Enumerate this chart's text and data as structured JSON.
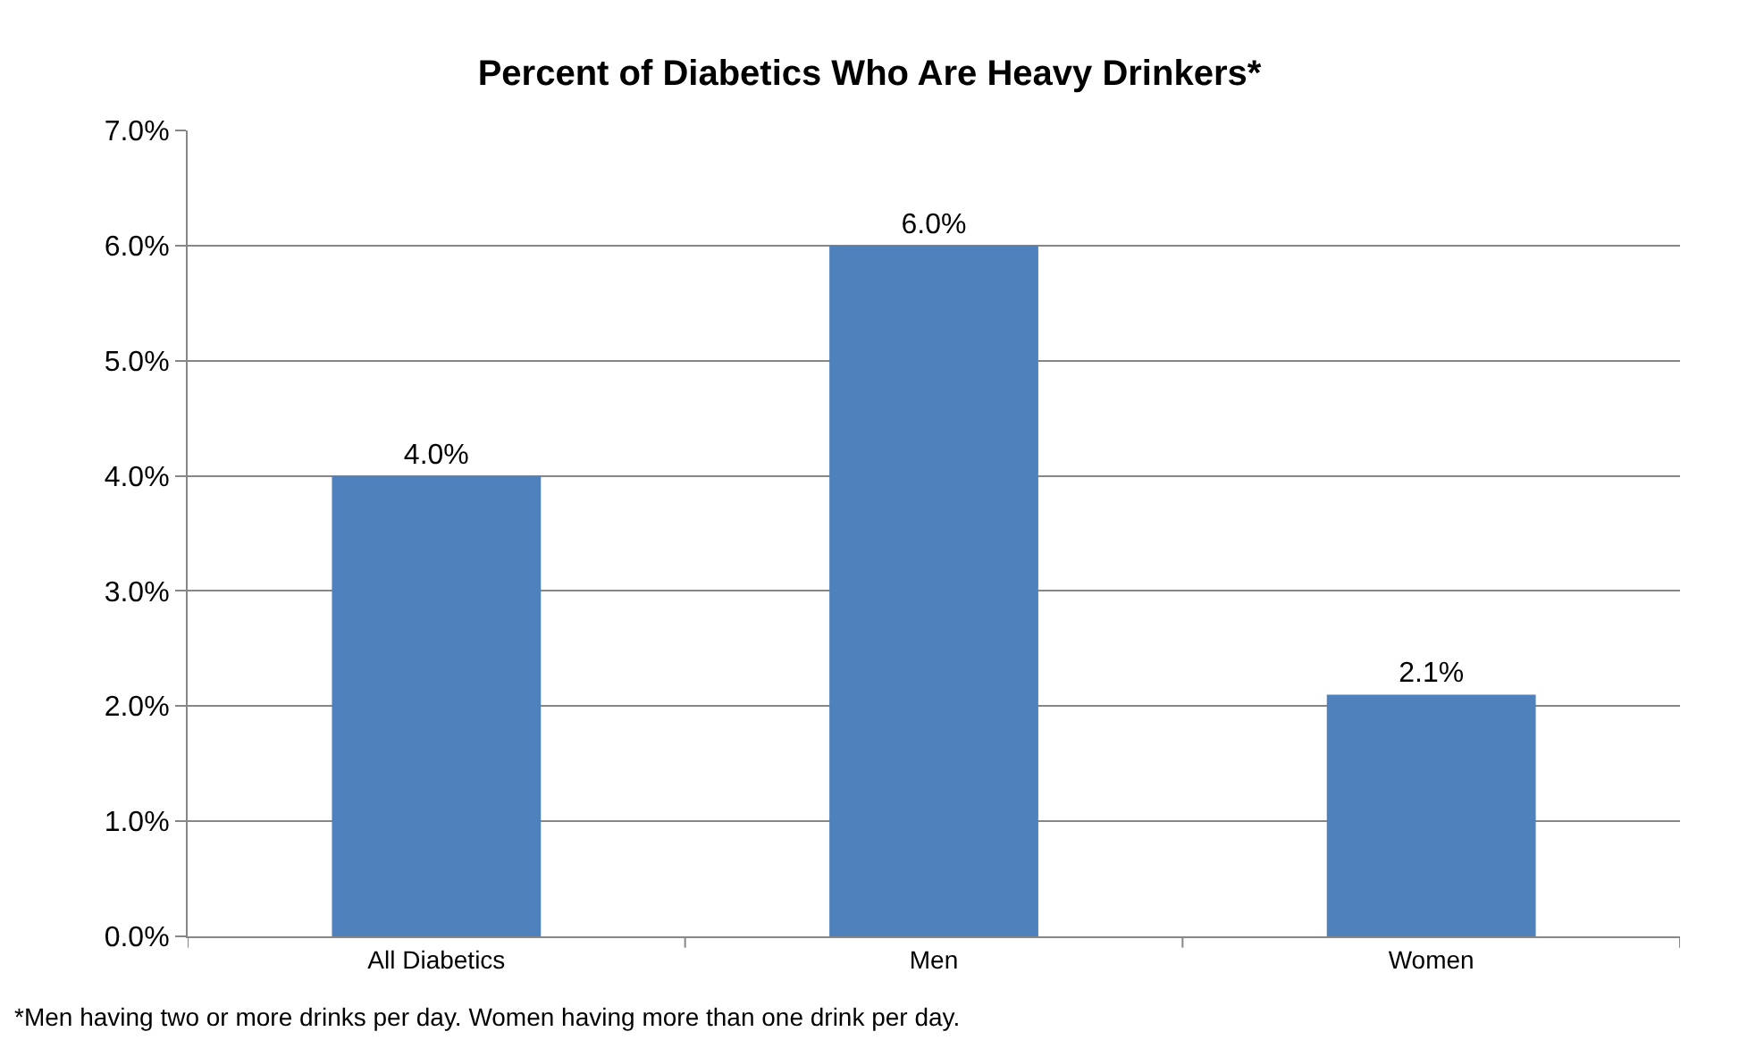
{
  "chart_data": {
    "type": "bar",
    "title": "Percent of Diabetics Who Are Heavy Drinkers*",
    "categories": [
      "All Diabetics",
      "Men",
      "Women"
    ],
    "values": [
      4.0,
      6.0,
      2.1
    ],
    "value_labels": [
      "4.0%",
      "6.0%",
      "2.1%"
    ],
    "color": "#4f81bd",
    "ylim": [
      0,
      7
    ],
    "yticks": [
      {
        "value": 0,
        "label": "0.0%"
      },
      {
        "value": 1,
        "label": "1.0%"
      },
      {
        "value": 2,
        "label": "2.0%"
      },
      {
        "value": 3,
        "label": "3.0%"
      },
      {
        "value": 4,
        "label": "4.0%"
      },
      {
        "value": 5,
        "label": "5.0%"
      },
      {
        "value": 6,
        "label": "6.0%"
      },
      {
        "value": 7,
        "label": "7.0%"
      }
    ],
    "grid": "y",
    "legend": false,
    "annotations": [
      "*Men having two or more drinks per day. Women having more than one drink per day."
    ]
  }
}
